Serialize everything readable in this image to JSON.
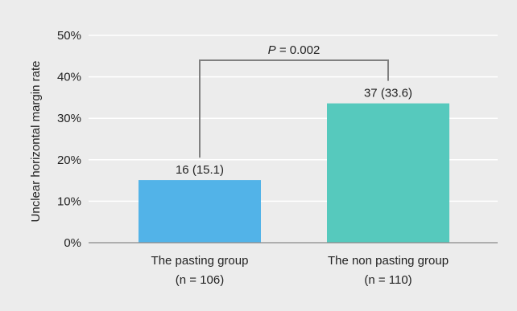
{
  "chart_data": {
    "type": "bar",
    "categories": [
      "The pasting group",
      "The non pasting group"
    ],
    "category_sublabels": [
      "(n = 106)",
      "(n = 110)"
    ],
    "values": [
      15.1,
      33.6
    ],
    "data_labels": [
      "16 (15.1)",
      "37 (33.6)"
    ],
    "colors": [
      "#52b3e8",
      "#56c9bd"
    ],
    "ylabel": "Unclear horizontal margin rate",
    "ylim": [
      0,
      50
    ],
    "yticks": [
      0,
      10,
      20,
      30,
      40,
      50
    ],
    "ytick_labels": [
      "0%",
      "10%",
      "20%",
      "30%",
      "40%",
      "50%"
    ],
    "grid": true,
    "annotation": {
      "p_symbol": "P",
      "p_value_text": " = 0.002",
      "bracket_top_value": 44
    }
  }
}
